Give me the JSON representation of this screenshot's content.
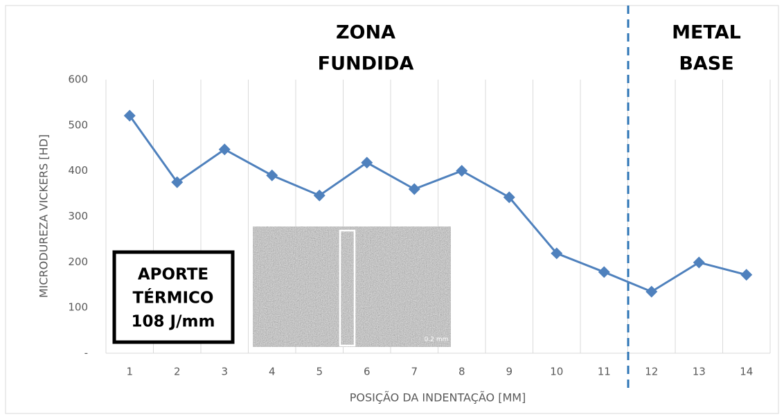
{
  "chart_data": {
    "type": "line",
    "y_axis_label": "MICRODUREZA VICKERS [HD]",
    "x_axis_label": "POSIÇÃO DA INDENTAÇÃO [MM]",
    "categories": [
      "1",
      "2",
      "3",
      "4",
      "5",
      "6",
      "7",
      "8",
      "9",
      "10",
      "11",
      "12",
      "13",
      "14"
    ],
    "series": [
      {
        "name": "Microdureza",
        "color": "#4f81bd",
        "values": [
          521,
          375,
          447,
          390,
          346,
          418,
          360,
          400,
          342,
          219,
          178,
          135,
          199,
          172
        ]
      }
    ],
    "ylim": [
      0,
      600
    ],
    "yticks": [
      {
        "value": 0,
        "label": "-"
      },
      100,
      200,
      300,
      400,
      500,
      600
    ],
    "zone_labels": [
      [
        "ZONA",
        "FUNDIDA"
      ],
      [
        "METAL",
        "BASE"
      ]
    ],
    "heat_input_box": [
      "APORTE",
      "TÉRMICO",
      "108 J/mm"
    ],
    "inset_scale_label": "0.2 mm"
  }
}
